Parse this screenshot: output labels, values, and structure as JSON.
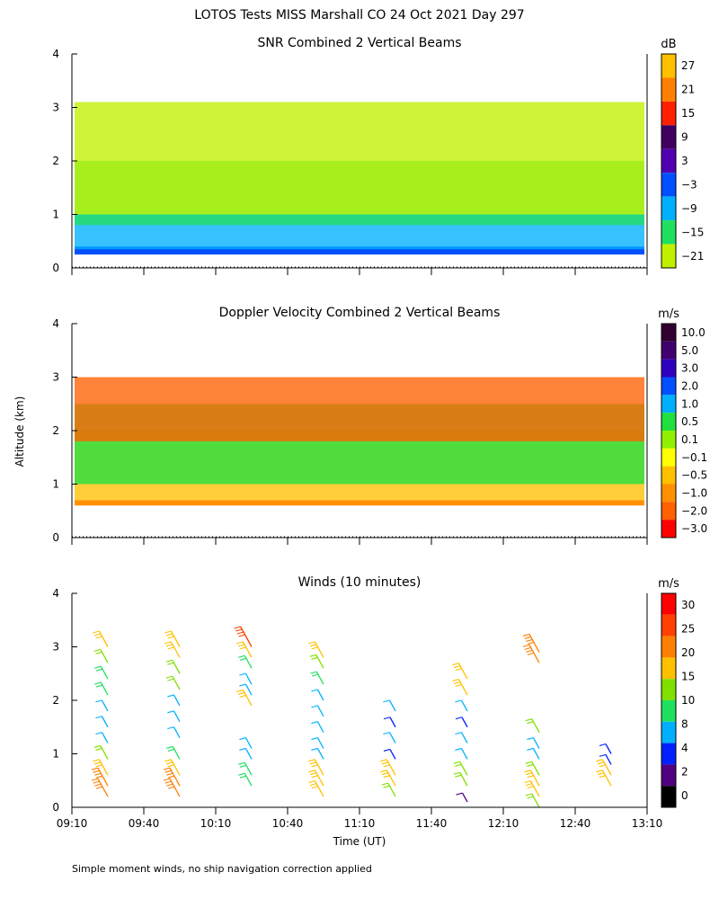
{
  "figure": {
    "title": "LOTOS Tests MISS Marshall CO  24 Oct 2021 Day 297",
    "ylabel": "Altitude (km)",
    "xlabel": "Time (UT)",
    "footnote": "Simple moment winds, no ship navigation correction applied"
  },
  "chart_data": [
    {
      "type": "heatmap",
      "title": "SNR Combined 2 Vertical Beams",
      "xlabel": "",
      "ylabel": "",
      "x_ticks": [
        "09:10",
        "09:40",
        "10:10",
        "10:40",
        "11:10",
        "11:40",
        "12:10",
        "12:40",
        "13:10"
      ],
      "y_ticks": [
        "0",
        "1",
        "2",
        "3",
        "4"
      ],
      "ylim": [
        0,
        4
      ],
      "colorbar": {
        "unit": "dB",
        "labels": [
          "27",
          "21",
          "15",
          "9",
          "3",
          "−3",
          "−9",
          "−15",
          "−21"
        ],
        "colors": [
          "#ffc000",
          "#ff8000",
          "#ff2000",
          "#400060",
          "#5000b0",
          "#0050ff",
          "#00b0ff",
          "#20e060",
          "#c0f000"
        ]
      },
      "layers": [
        {
          "label": "−3",
          "from_km": 0.25,
          "to_km": 0.4
        },
        {
          "label": "−9",
          "from_km": 0.35,
          "to_km": 1.0
        },
        {
          "label": "−15",
          "from_km": 0.8,
          "to_km": 2.0
        },
        {
          "label": "−21",
          "from_km": 1.0,
          "to_km": 3.1
        }
      ]
    },
    {
      "type": "heatmap",
      "title": "Doppler Velocity Combined 2 Vertical Beams",
      "xlabel": "",
      "ylabel": "Altitude (km)",
      "x_ticks": [
        "09:10",
        "09:40",
        "10:10",
        "10:40",
        "11:10",
        "11:40",
        "12:10",
        "12:40",
        "13:10"
      ],
      "y_ticks": [
        "0",
        "1",
        "2",
        "3",
        "4"
      ],
      "ylim": [
        0,
        4
      ],
      "colorbar": {
        "unit": "m/s",
        "labels": [
          "10.0",
          "5.0",
          "3.0",
          "2.0",
          "1.0",
          "0.5",
          "0.1",
          "−0.1",
          "−0.5",
          "−1.0",
          "−2.0",
          "−3.0"
        ],
        "colors": [
          "#300030",
          "#400070",
          "#3000c0",
          "#0050ff",
          "#00b0ff",
          "#20e040",
          "#90f000",
          "#ffff00",
          "#ffc000",
          "#ff9000",
          "#ff6000",
          "#ff0000"
        ]
      },
      "layers": [
        {
          "label": "−1.0",
          "from_km": 0.6,
          "to_km": 0.7
        },
        {
          "label": "−0.5",
          "from_km": 0.7,
          "to_km": 2.0
        },
        {
          "label": "0.5",
          "from_km": 1.0,
          "to_km": 2.5
        },
        {
          "label": "−2.0",
          "from_km": 1.8,
          "to_km": 3.0
        }
      ]
    },
    {
      "type": "scatter",
      "title": "Winds (10 minutes)",
      "xlabel": "Time (UT)",
      "ylabel": "",
      "x_ticks": [
        "09:10",
        "09:40",
        "10:10",
        "10:40",
        "11:10",
        "11:40",
        "12:10",
        "12:40",
        "13:10"
      ],
      "y_ticks": [
        "0",
        "1",
        "2",
        "3",
        "4"
      ],
      "ylim": [
        0,
        4
      ],
      "colorbar": {
        "unit": "m/s",
        "labels": [
          "30",
          "25",
          "20",
          "15",
          "10",
          "8",
          "4",
          "2",
          "0"
        ],
        "colors": [
          "#ff0000",
          "#ff4000",
          "#ff8000",
          "#ffc000",
          "#80e000",
          "#20e060",
          "#00b0ff",
          "#0020ff",
          "#500080",
          "#000000"
        ]
      },
      "profiles": [
        {
          "time": "09:25",
          "levels": [
            {
              "alt_km": 0.2,
              "speed": 20
            },
            {
              "alt_km": 0.4,
              "speed": 20
            },
            {
              "alt_km": 0.6,
              "speed": 15
            },
            {
              "alt_km": 0.9,
              "speed": 10
            },
            {
              "alt_km": 1.2,
              "speed": 4
            },
            {
              "alt_km": 1.5,
              "speed": 4
            },
            {
              "alt_km": 1.8,
              "speed": 4
            },
            {
              "alt_km": 2.1,
              "speed": 8
            },
            {
              "alt_km": 2.4,
              "speed": 8
            },
            {
              "alt_km": 2.7,
              "speed": 10
            },
            {
              "alt_km": 3.0,
              "speed": 15
            }
          ]
        },
        {
          "time": "09:55",
          "levels": [
            {
              "alt_km": 0.2,
              "speed": 20
            },
            {
              "alt_km": 0.4,
              "speed": 20
            },
            {
              "alt_km": 0.6,
              "speed": 15
            },
            {
              "alt_km": 0.9,
              "speed": 8
            },
            {
              "alt_km": 1.3,
              "speed": 4
            },
            {
              "alt_km": 1.6,
              "speed": 4
            },
            {
              "alt_km": 1.9,
              "speed": 4
            },
            {
              "alt_km": 2.2,
              "speed": 10
            },
            {
              "alt_km": 2.5,
              "speed": 10
            },
            {
              "alt_km": 2.8,
              "speed": 15
            },
            {
              "alt_km": 3.0,
              "speed": 15
            }
          ]
        },
        {
          "time": "10:25",
          "levels": [
            {
              "alt_km": 0.4,
              "speed": 8
            },
            {
              "alt_km": 0.6,
              "speed": 8
            },
            {
              "alt_km": 0.9,
              "speed": 4
            },
            {
              "alt_km": 1.1,
              "speed": 4
            },
            {
              "alt_km": 1.9,
              "speed": 15
            },
            {
              "alt_km": 2.1,
              "speed": 4
            },
            {
              "alt_km": 2.3,
              "speed": 4
            },
            {
              "alt_km": 2.6,
              "speed": 8
            },
            {
              "alt_km": 2.8,
              "speed": 15
            },
            {
              "alt_km": 3.0,
              "speed": 25
            }
          ]
        },
        {
          "time": "10:55",
          "levels": [
            {
              "alt_km": 0.2,
              "speed": 15
            },
            {
              "alt_km": 0.4,
              "speed": 15
            },
            {
              "alt_km": 0.6,
              "speed": 15
            },
            {
              "alt_km": 0.9,
              "speed": 4
            },
            {
              "alt_km": 1.1,
              "speed": 4
            },
            {
              "alt_km": 1.4,
              "speed": 4
            },
            {
              "alt_km": 1.7,
              "speed": 4
            },
            {
              "alt_km": 2.0,
              "speed": 4
            },
            {
              "alt_km": 2.3,
              "speed": 8
            },
            {
              "alt_km": 2.6,
              "speed": 10
            },
            {
              "alt_km": 2.8,
              "speed": 15
            }
          ]
        },
        {
          "time": "11:25",
          "levels": [
            {
              "alt_km": 0.2,
              "speed": 10
            },
            {
              "alt_km": 0.4,
              "speed": 15
            },
            {
              "alt_km": 0.6,
              "speed": 15
            },
            {
              "alt_km": 0.9,
              "speed": 2
            },
            {
              "alt_km": 1.2,
              "speed": 4
            },
            {
              "alt_km": 1.5,
              "speed": 2
            },
            {
              "alt_km": 1.8,
              "speed": 4
            }
          ]
        },
        {
          "time": "11:55",
          "levels": [
            {
              "alt_km": 0.1,
              "speed": 0
            },
            {
              "alt_km": 0.4,
              "speed": 10
            },
            {
              "alt_km": 0.6,
              "speed": 10
            },
            {
              "alt_km": 0.9,
              "speed": 4
            },
            {
              "alt_km": 1.2,
              "speed": 4
            },
            {
              "alt_km": 1.5,
              "speed": 2
            },
            {
              "alt_km": 1.8,
              "speed": 4
            },
            {
              "alt_km": 2.1,
              "speed": 15
            },
            {
              "alt_km": 2.4,
              "speed": 15
            }
          ]
        },
        {
          "time": "12:25",
          "levels": [
            {
              "alt_km": 0.0,
              "speed": 10
            },
            {
              "alt_km": 0.2,
              "speed": 15
            },
            {
              "alt_km": 0.4,
              "speed": 15
            },
            {
              "alt_km": 0.6,
              "speed": 10
            },
            {
              "alt_km": 0.9,
              "speed": 4
            },
            {
              "alt_km": 1.1,
              "speed": 4
            },
            {
              "alt_km": 1.4,
              "speed": 10
            },
            {
              "alt_km": 2.7,
              "speed": 20
            },
            {
              "alt_km": 2.9,
              "speed": 20
            }
          ]
        },
        {
          "time": "12:55",
          "levels": [
            {
              "alt_km": 0.4,
              "speed": 15
            },
            {
              "alt_km": 0.6,
              "speed": 15
            },
            {
              "alt_km": 0.8,
              "speed": 2
            },
            {
              "alt_km": 1.0,
              "speed": 2
            }
          ]
        }
      ]
    }
  ]
}
